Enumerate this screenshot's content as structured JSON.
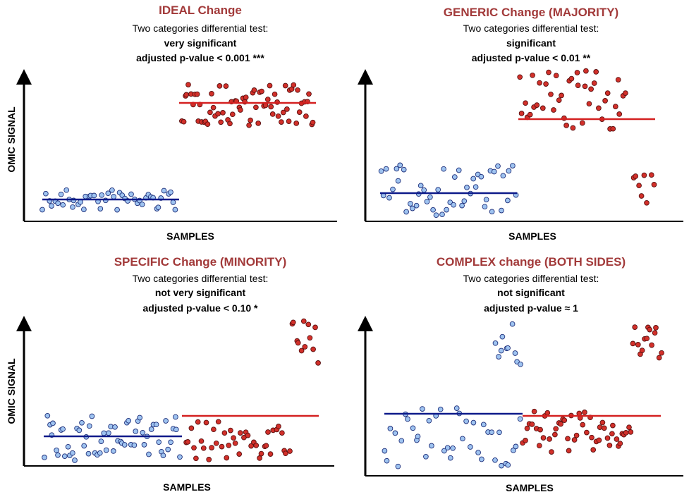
{
  "colors": {
    "title": "#a23a3a",
    "blue_fill": "#9ec3f0",
    "blue_stroke": "#1e2f7a",
    "blue_line": "#0d1a8a",
    "red_fill": "#d2302a",
    "red_stroke": "#5a1010",
    "red_line": "#d42020",
    "axis": "#000000"
  },
  "panels": [
    {
      "title": "IDEAL Change",
      "line1": "Two categories differential test:",
      "line2": "very significant",
      "line3": "adjusted p-value < 0.001 ***",
      "xlabel": "SAMPLES",
      "ylabel": "OMIC SIGNAL"
    },
    {
      "title": "GENERIC Change (MAJORITY)",
      "line1": "Two categories differential test:",
      "line2": "significant",
      "line3": "adjusted p-value < 0.01 **",
      "xlabel": "SAMPLES",
      "ylabel": ""
    },
    {
      "title": "SPECIFIC Change (MINORITY)",
      "line1": "Two categories differential test:",
      "line2": "not very significant",
      "line3": "adjusted p-value < 0.10 *",
      "xlabel": "SAMPLES",
      "ylabel": "OMIC SIGNAL"
    },
    {
      "title": "COMPLEX change (BOTH SIDES)",
      "line1": "Two categories differential test:",
      "line2": "not significant",
      "line3": "adjusted p-value ≈ 1",
      "xlabel": "SAMPLES",
      "ylabel": ""
    }
  ]
}
